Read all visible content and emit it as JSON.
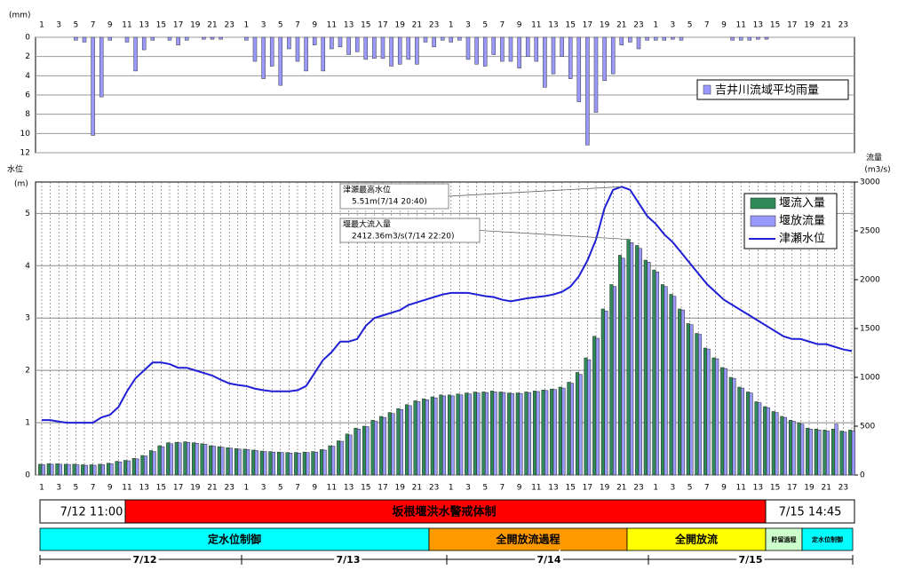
{
  "chart_data": [
    {
      "type": "bar",
      "y_label": "(mm)",
      "y_inverted": true,
      "legend": "upper right",
      "grid": true,
      "categories": [
        1,
        null,
        3,
        null,
        5,
        null,
        7,
        null,
        9,
        null,
        11,
        null,
        13,
        null,
        15,
        null,
        17,
        null,
        19,
        null,
        21,
        null,
        23,
        null,
        1,
        null,
        3,
        null,
        5,
        null,
        7,
        null,
        9,
        null,
        11,
        null,
        13,
        null,
        15,
        null,
        17,
        null,
        19,
        null,
        21,
        null,
        23,
        null,
        1,
        null,
        3,
        null,
        5,
        null,
        7,
        null,
        9,
        null,
        11,
        null,
        13,
        null,
        15,
        null,
        17,
        null,
        19,
        null,
        21,
        null,
        23,
        null,
        1,
        null,
        3,
        null,
        5,
        null,
        7,
        null,
        9,
        null,
        11,
        null,
        13,
        null,
        15,
        null,
        17,
        null,
        19,
        null,
        21,
        null,
        23,
        null
      ],
      "series": [
        {
          "name": "吉井川流域平均雨量",
          "color": "#9999ff",
          "values": [
            0,
            0,
            0,
            0,
            0.3,
            0.5,
            10.2,
            6.2,
            0.3,
            0,
            0.5,
            3.5,
            1.3,
            0.3,
            0,
            0.3,
            0.8,
            0.3,
            0,
            0.2,
            0.2,
            0.2,
            0,
            0,
            0.3,
            2.5,
            4.3,
            3.0,
            5.0,
            1.2,
            2.5,
            3.5,
            0.8,
            3.5,
            1.2,
            1.0,
            1.8,
            1.5,
            2.3,
            2.2,
            2.2,
            3.0,
            2.8,
            2.3,
            2.8,
            0.5,
            1.0,
            0.3,
            0.5,
            0.3,
            2.3,
            2.8,
            3.0,
            1.8,
            2.5,
            2.5,
            3.2,
            2.0,
            2.5,
            5.2,
            3.8,
            2.0,
            4.3,
            6.7,
            11.2,
            7.8,
            4.5,
            3.8,
            0.8,
            0.5,
            1.2,
            0.3,
            0.3,
            0.3,
            0.2,
            0.3,
            0,
            0,
            0,
            0,
            0,
            0.3,
            0.3,
            0.3,
            0.2,
            0.2,
            0,
            0,
            0,
            0,
            0,
            0,
            0,
            0,
            0,
            0
          ]
        }
      ],
      "ylim": [
        0,
        12
      ],
      "yticks": [
        0,
        2,
        4,
        6,
        8,
        10,
        12
      ]
    },
    {
      "type": "combo",
      "y_label": [
        "水位",
        "(m)"
      ],
      "y2_label": [
        "流量",
        "(m3/s)"
      ],
      "legend": "upper right",
      "grid": true,
      "categories": [
        1,
        null,
        3,
        null,
        5,
        null,
        7,
        null,
        9,
        null,
        11,
        null,
        13,
        null,
        15,
        null,
        17,
        null,
        19,
        null,
        21,
        null,
        23,
        null,
        1,
        null,
        3,
        null,
        5,
        null,
        7,
        null,
        9,
        null,
        11,
        null,
        13,
        null,
        15,
        null,
        17,
        null,
        19,
        null,
        21,
        null,
        23,
        null,
        1,
        null,
        3,
        null,
        5,
        null,
        7,
        null,
        9,
        null,
        11,
        null,
        13,
        null,
        15,
        null,
        17,
        null,
        19,
        null,
        21,
        null,
        23,
        null,
        1,
        null,
        3,
        null,
        5,
        null,
        7,
        null,
        9,
        null,
        11,
        null,
        13,
        null,
        15,
        null,
        17,
        null,
        19,
        null,
        21,
        null,
        23,
        null
      ],
      "series": [
        {
          "name": "堰流入量",
          "type": "bar",
          "axis": "y2",
          "color": "#2e8b57",
          "values": [
            110,
            115,
            115,
            110,
            110,
            105,
            105,
            110,
            120,
            140,
            150,
            170,
            200,
            250,
            300,
            330,
            335,
            340,
            330,
            320,
            300,
            290,
            280,
            270,
            265,
            255,
            245,
            240,
            235,
            230,
            230,
            235,
            240,
            260,
            300,
            350,
            420,
            480,
            500,
            560,
            600,
            640,
            680,
            720,
            760,
            780,
            800,
            820,
            820,
            830,
            840,
            850,
            850,
            860,
            850,
            840,
            840,
            850,
            860,
            870,
            880,
            900,
            950,
            1050,
            1200,
            1420,
            1700,
            1950,
            2250,
            2412.36,
            2350,
            2200,
            2100,
            1950,
            1850,
            1700,
            1550,
            1450,
            1300,
            1200,
            1100,
            1000,
            900,
            850,
            750,
            700,
            650,
            600,
            560,
            530,
            480,
            470,
            460,
            470,
            450,
            460
          ]
        },
        {
          "name": "堰放流量",
          "type": "bar",
          "axis": "y2",
          "color": "#9999ff",
          "values": [
            105,
            110,
            110,
            108,
            105,
            100,
            100,
            105,
            115,
            135,
            145,
            165,
            195,
            240,
            290,
            320,
            330,
            335,
            325,
            315,
            295,
            285,
            275,
            265,
            260,
            250,
            240,
            235,
            230,
            225,
            225,
            230,
            235,
            255,
            295,
            345,
            410,
            470,
            495,
            550,
            590,
            630,
            670,
            710,
            750,
            770,
            790,
            810,
            810,
            820,
            830,
            840,
            845,
            850,
            845,
            835,
            835,
            845,
            855,
            865,
            875,
            890,
            940,
            1030,
            1180,
            1400,
            1680,
            1930,
            2220,
            2380,
            2320,
            2180,
            2080,
            1930,
            1830,
            1690,
            1540,
            1440,
            1290,
            1190,
            1090,
            990,
            890,
            840,
            740,
            690,
            640,
            590,
            550,
            520,
            470,
            460,
            450,
            520,
            440,
            450
          ]
        },
        {
          "name": "津瀬水位",
          "type": "line",
          "color": "#1f1fd6",
          "values": [
            1.05,
            1.05,
            1.02,
            1.0,
            1.0,
            1.0,
            1.0,
            1.1,
            1.15,
            1.3,
            1.6,
            1.85,
            2.0,
            2.15,
            2.15,
            2.12,
            2.05,
            2.05,
            2.0,
            1.95,
            1.9,
            1.82,
            1.75,
            1.72,
            1.7,
            1.65,
            1.62,
            1.6,
            1.6,
            1.6,
            1.62,
            1.7,
            1.95,
            2.2,
            2.35,
            2.55,
            2.55,
            2.6,
            2.85,
            3.0,
            3.05,
            3.1,
            3.15,
            3.25,
            3.3,
            3.35,
            3.4,
            3.45,
            3.48,
            3.48,
            3.48,
            3.45,
            3.42,
            3.4,
            3.35,
            3.32,
            3.35,
            3.38,
            3.4,
            3.42,
            3.45,
            3.5,
            3.6,
            3.8,
            4.1,
            4.5,
            5.1,
            5.45,
            5.51,
            5.45,
            5.2,
            4.95,
            4.8,
            4.6,
            4.45,
            4.25,
            4.05,
            3.85,
            3.65,
            3.5,
            3.35,
            3.25,
            3.15,
            3.05,
            2.95,
            2.85,
            2.75,
            2.65,
            2.6,
            2.6,
            2.55,
            2.5,
            2.5,
            2.45,
            2.4,
            2.37
          ]
        }
      ],
      "ylim": [
        0,
        5.6
      ],
      "yticks": [
        0,
        1,
        2,
        3,
        4,
        5
      ],
      "y2lim": [
        0,
        3000
      ],
      "y2ticks": [
        0,
        500,
        1000,
        1500,
        2000,
        2500,
        3000
      ],
      "annotations": [
        {
          "title": "津瀬最高水位",
          "text": "5.51m(7/14 20:40)",
          "color": "#0000ff"
        },
        {
          "title": "堰最大流入量",
          "text": "2412.36m3/s(7/14 22:20)",
          "color": "#008060"
        }
      ]
    }
  ],
  "timeline": {
    "alert": {
      "start": "7/12 11:00",
      "label": "坂根堰洪水警戒体制",
      "end": "7/15 14:45",
      "color": "#ff0000"
    },
    "phases": [
      {
        "label": "定水位制御",
        "color": "#00ffff"
      },
      {
        "label": "全開放流過程",
        "color": "#ff9900"
      },
      {
        "label": "全開放流",
        "color": "#ffff00"
      },
      {
        "label": "貯留過程",
        "color": "#ccffcc"
      },
      {
        "label": "定水位制御",
        "color": "#00ffff"
      }
    ],
    "dates": [
      "7/12",
      "7/13",
      "7/14",
      "7/15"
    ]
  }
}
